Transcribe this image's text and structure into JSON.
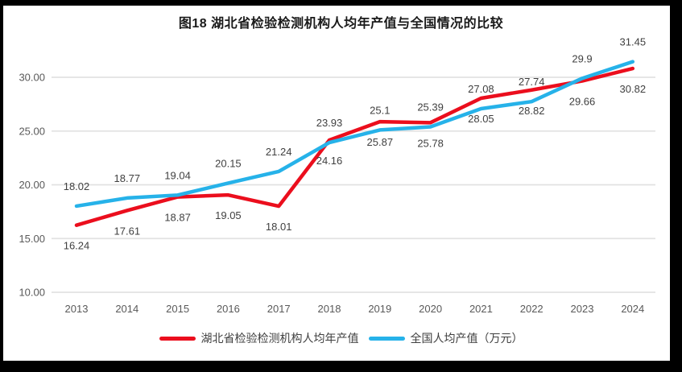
{
  "figure": {
    "title": "图18  湖北省检验检测机构人均年产值与全国情况的比较"
  },
  "colors": {
    "hubei_red": "#eb0e1d",
    "national_blue": "#26b2e9",
    "gridline": "#e2e2e2",
    "axis_text": "#595959",
    "data_label_text": "#404040",
    "frame": "#000000"
  },
  "legend": {
    "items": [
      {
        "label": "湖北省检验检测机构人均年产值",
        "series": "hubei"
      },
      {
        "label": "全国人均产值（万元）",
        "series": "national"
      }
    ]
  },
  "chart_data": {
    "type": "line",
    "title": "图18  湖北省检验检测机构人均年产值与全国情况的比较",
    "categories": [
      "2013",
      "2014",
      "2015",
      "2016",
      "2017",
      "2018",
      "2019",
      "2020",
      "2021",
      "2022",
      "2023",
      "2024"
    ],
    "series": [
      {
        "name": "湖北省检验检测机构人均年产值",
        "color": "#eb0e1d",
        "values": [
          16.24,
          17.61,
          18.87,
          19.05,
          18.01,
          24.16,
          25.87,
          25.78,
          28.05,
          28.82,
          29.66,
          30.82
        ],
        "label_position": "below"
      },
      {
        "name": "全国人均产值（万元）",
        "color": "#26b2e9",
        "values": [
          18.02,
          18.77,
          19.04,
          20.15,
          21.24,
          23.93,
          25.1,
          25.39,
          27.08,
          27.74,
          29.9,
          31.45
        ],
        "label_position": "above"
      }
    ],
    "ytick_labels": [
      "30.00",
      "25.00",
      "20.00",
      "15.00",
      "10.00"
    ],
    "ytick_values": [
      30,
      25,
      20,
      15,
      10
    ],
    "ylim": [
      10,
      32.5
    ],
    "xlabel": "",
    "ylabel": "",
    "grid": "horizontal-only",
    "legend_position": "bottom",
    "data_labels": true
  }
}
